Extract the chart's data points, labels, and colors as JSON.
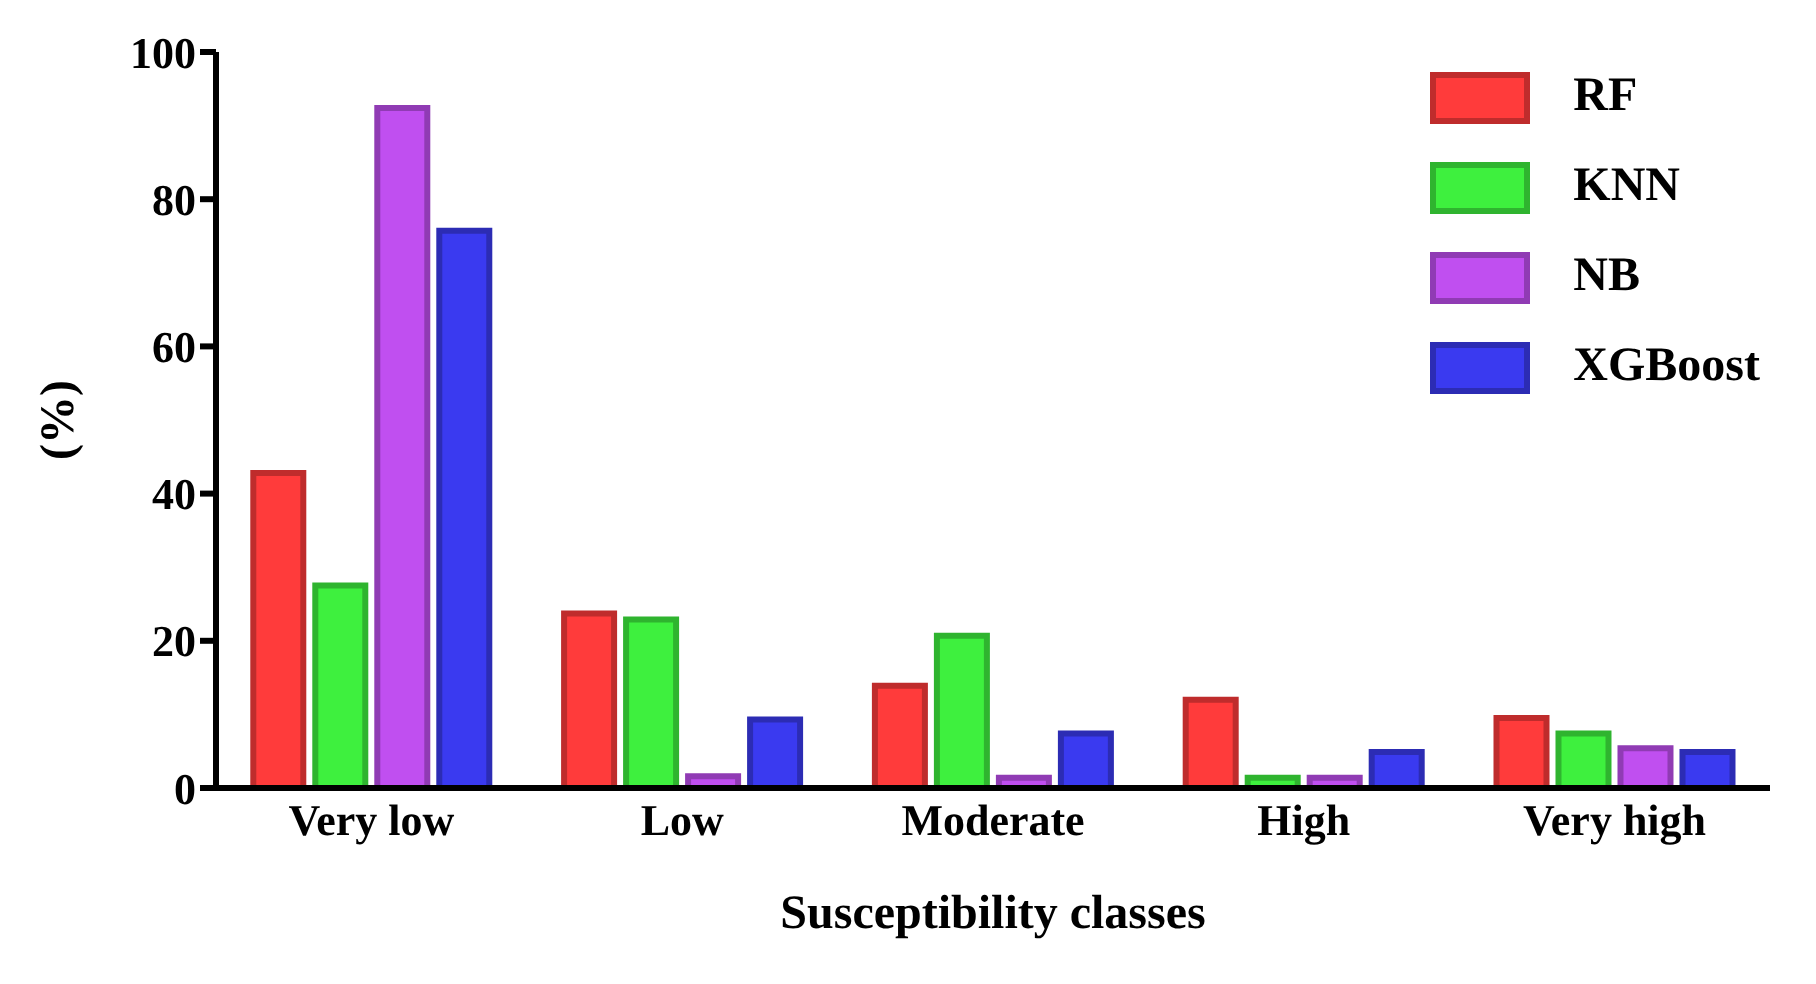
{
  "chart_data": {
    "type": "bar",
    "xlabel": "Susceptibility classes",
    "ylabel": "(%)",
    "categories": [
      "Very low",
      "Low",
      "Moderate",
      "High",
      "Very high"
    ],
    "series": [
      {
        "name": "RF",
        "color": "#ff3b3b",
        "values": [
          42.8,
          23.7,
          13.9,
          12,
          9.5
        ]
      },
      {
        "name": "KNN",
        "color": "#3ef03e",
        "values": [
          27.5,
          22.9,
          20.7,
          1.4,
          7.4
        ]
      },
      {
        "name": "NB",
        "color": "#c04ff0",
        "values": [
          92.4,
          1.6,
          1.4,
          1.4,
          5.4
        ]
      },
      {
        "name": "XGBoost",
        "color": "#3a3af0",
        "values": [
          75.7,
          9.3,
          7.4,
          4.9,
          4.9
        ]
      }
    ],
    "ylim": [
      0,
      100
    ],
    "yticks": [
      0,
      20,
      40,
      60,
      80,
      100
    ],
    "grid": false,
    "legend": "top right"
  }
}
